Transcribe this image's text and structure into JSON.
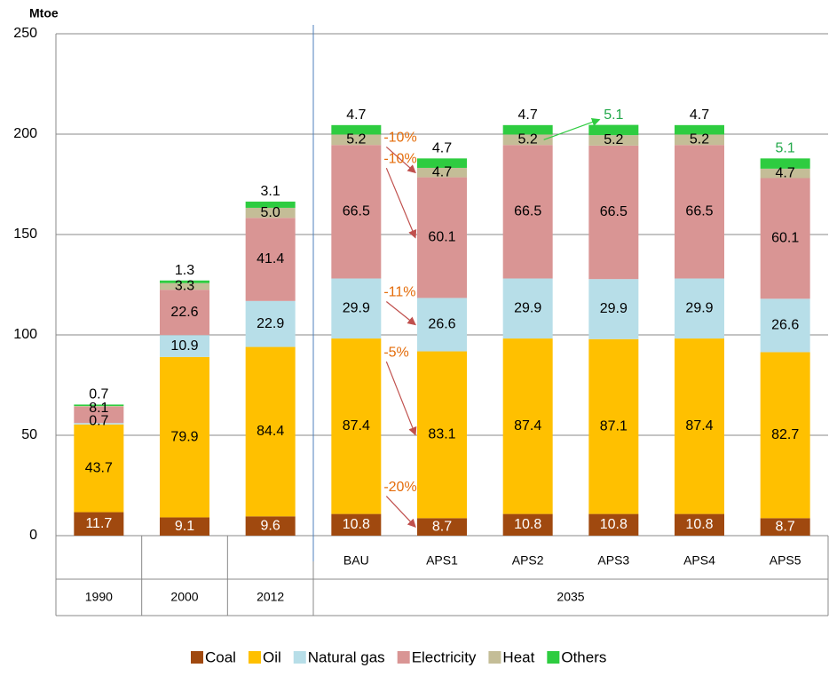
{
  "chart_data": {
    "type": "stacked_bar",
    "y_label": "Mtoe",
    "categories": [
      null,
      null,
      null,
      "BAU",
      "APS1",
      "APS2",
      "APS3",
      "APS4",
      "APS5"
    ],
    "groups": [
      "1990",
      "2000",
      "2012",
      "2035"
    ],
    "group_sizes": [
      1,
      1,
      1,
      6
    ],
    "ylim": [
      0,
      250
    ],
    "yticks": [
      0,
      50,
      100,
      150,
      200,
      250
    ],
    "grid": true,
    "series": [
      {
        "name": "Coal",
        "color": "#a0490f",
        "label_color": "#ffffff",
        "values": [
          11.7,
          9.1,
          9.6,
          10.8,
          8.7,
          10.8,
          10.8,
          10.8,
          8.7
        ]
      },
      {
        "name": "Oil",
        "color": "#ffc000",
        "label_color": "#000000",
        "values": [
          43.7,
          79.9,
          84.4,
          87.4,
          83.1,
          87.4,
          87.1,
          87.4,
          82.7
        ]
      },
      {
        "name": "Natural gas",
        "color": "#b7dee8",
        "label_color": "#000000",
        "values": [
          0.7,
          10.9,
          22.9,
          29.9,
          26.6,
          29.9,
          29.9,
          29.9,
          26.6
        ]
      },
      {
        "name": "Electricity",
        "color": "#d99594",
        "label_color": "#000000",
        "values": [
          8.1,
          22.6,
          41.4,
          66.5,
          60.1,
          66.5,
          66.5,
          66.5,
          60.1
        ]
      },
      {
        "name": "Heat",
        "color": "#c4bd97",
        "label_color": "#000000",
        "values": [
          0.4,
          3.3,
          5.0,
          5.2,
          4.7,
          5.2,
          5.2,
          5.2,
          4.7
        ],
        "value_labels": [
          null,
          "3.3",
          "5.0",
          "5.2",
          "4.7",
          "5.2",
          "5.2",
          "5.2",
          "4.7"
        ]
      },
      {
        "name": "Others",
        "color": "#2ecc40",
        "label_color": "#000000",
        "values": [
          0.7,
          1.3,
          3.1,
          4.7,
          4.7,
          4.7,
          5.1,
          4.7,
          5.1
        ],
        "label_colors": [
          "#000000",
          "#000000",
          "#000000",
          "#000000",
          "#000000",
          "#000000",
          "#22a84a",
          "#000000",
          "#22a84a"
        ]
      }
    ],
    "annotation_color": "#e46c0a",
    "annotations": [
      {
        "text": "-10%",
        "series": 5
      },
      {
        "text": "-10%",
        "series": 3
      },
      {
        "text": "-11%",
        "series": 2
      },
      {
        "text": "-5%",
        "series": 1
      },
      {
        "text": "-20%",
        "series": 0
      }
    ]
  }
}
